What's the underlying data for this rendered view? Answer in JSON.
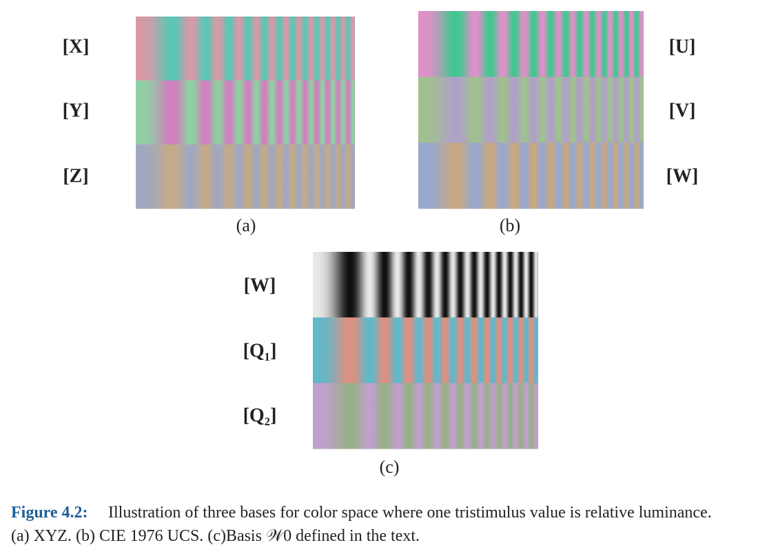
{
  "panels": [
    {
      "rows": [
        "[X]",
        "[Y]",
        "[Z]"
      ],
      "label": "(a)"
    },
    {
      "rows": [
        "[U]",
        "[V]",
        "[W]"
      ],
      "label": "(b)"
    },
    {
      "rows": [
        "[W]",
        "[Q₁]",
        "[Q₂]"
      ],
      "label": "(c)"
    }
  ],
  "caption": {
    "label": "Figure 4.2:",
    "line1": "Illustration of three bases for color space where one tristimulus value is relative luminance.",
    "line2": "(a) XYZ. (b) CIE 1976 UCS. (c)Basis 𝒲0 defined in the text."
  }
}
